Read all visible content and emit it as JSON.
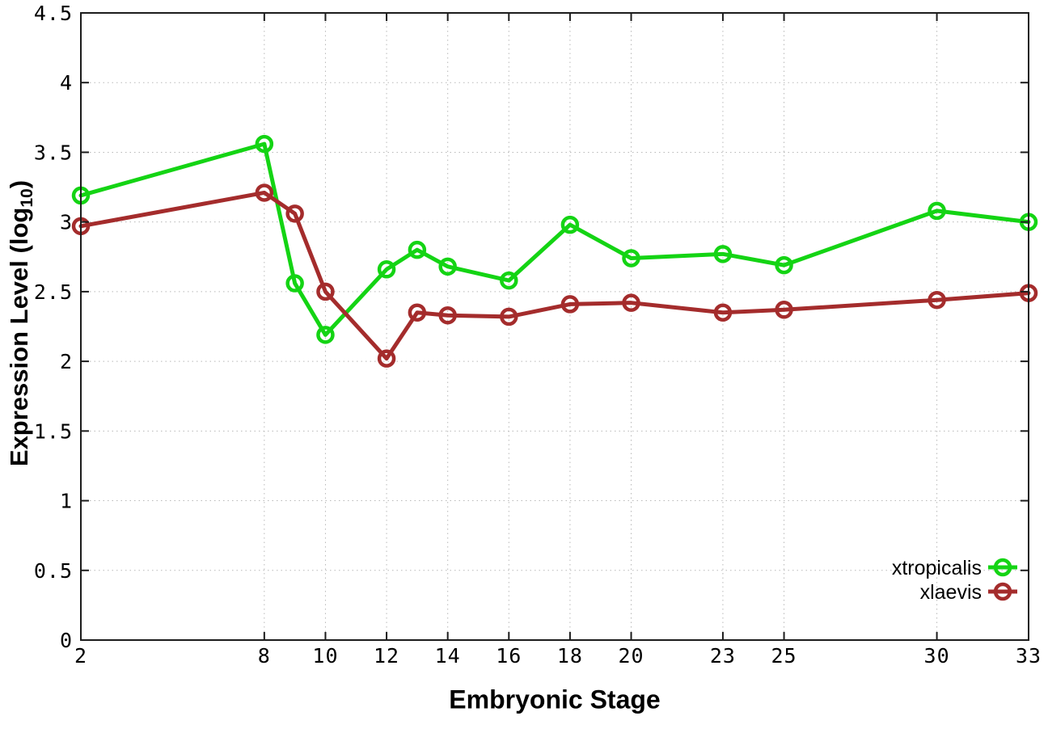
{
  "chart_data": {
    "type": "line",
    "title": "",
    "xlabel": "Embryonic Stage",
    "ylabel": "Expression Level (log10)",
    "ylabel_parts": {
      "base": "Expression Level (log",
      "sub": "10",
      "end": ")"
    },
    "xlim": [
      2,
      33
    ],
    "ylim": [
      0,
      4.5
    ],
    "xticks": [
      2,
      8,
      10,
      12,
      14,
      16,
      18,
      20,
      23,
      25,
      30,
      33
    ],
    "yticks": [
      "0",
      "0.5",
      "1",
      "1.5",
      "2",
      "2.5",
      "3",
      "3.5",
      "4",
      "4.5"
    ],
    "grid": true,
    "legend_position": "bottom-right-inside",
    "x": [
      2,
      8,
      9,
      10,
      12,
      13,
      14,
      16,
      18,
      20,
      23,
      25,
      30,
      33
    ],
    "series": [
      {
        "name": "xtropicalis",
        "color": "#14d414",
        "marker": "open-circle",
        "values": [
          3.19,
          3.56,
          2.56,
          2.19,
          2.66,
          2.8,
          2.68,
          2.58,
          2.98,
          2.74,
          2.77,
          2.69,
          3.08,
          3.0
        ]
      },
      {
        "name": "xlaevis",
        "color": "#a42c2c",
        "marker": "open-circle",
        "values": [
          2.97,
          3.21,
          3.06,
          2.5,
          2.02,
          2.35,
          2.33,
          2.32,
          2.41,
          2.42,
          2.35,
          2.37,
          2.44,
          2.49
        ]
      }
    ],
    "style": {
      "border_color": "#1c1c1c",
      "grid_color": "#b8b8b8",
      "text_color": "#000000",
      "background": "#ffffff",
      "line_width": 5,
      "marker_radius": 9,
      "marker_stroke": 4.5
    }
  }
}
